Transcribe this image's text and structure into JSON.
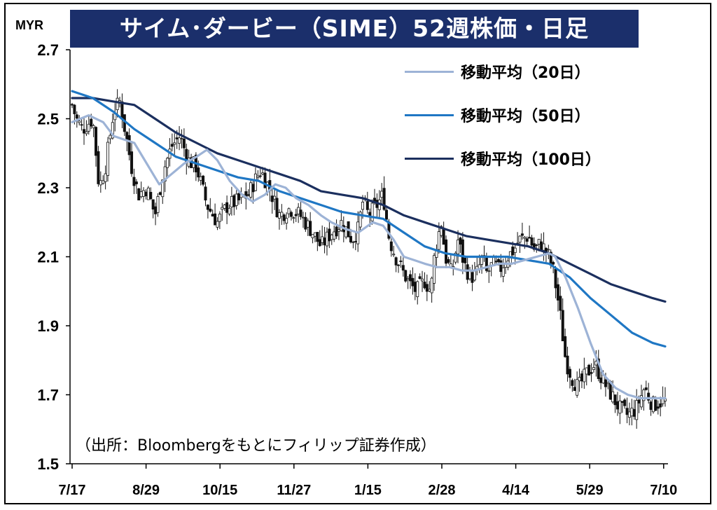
{
  "chart_data": {
    "type": "candlestick-line",
    "title": "サイム･ダービー（SIME）52週株価・日足",
    "unit": "MYR",
    "source": "（出所：Bloombergをもとにフィリップ証券作成）",
    "y_ticks": [
      "2.7",
      "2.5",
      "2.3",
      "2.1",
      "1.9",
      "1.7",
      "1.5"
    ],
    "ylim": [
      1.5,
      2.7
    ],
    "x_ticks": [
      "7/17",
      "8/29",
      "10/15",
      "11/27",
      "1/15",
      "2/28",
      "4/14",
      "5/29",
      "7/10"
    ],
    "legend": [
      {
        "name": "移動平均（20日）",
        "color": "#9db3d6"
      },
      {
        "name": "移動平均（50日）",
        "color": "#1f77c4"
      },
      {
        "name": "移動平均（100日）",
        "color": "#1b2f5e"
      }
    ],
    "close_path": [
      [
        0,
        2.54
      ],
      [
        0.2,
        2.5
      ],
      [
        0.5,
        2.47
      ],
      [
        1.0,
        2.5
      ],
      [
        1.3,
        2.3
      ],
      [
        1.6,
        2.36
      ],
      [
        2.0,
        2.52
      ],
      [
        2.3,
        2.55
      ],
      [
        2.6,
        2.45
      ],
      [
        2.9,
        2.35
      ],
      [
        3.2,
        2.28
      ],
      [
        3.6,
        2.3
      ],
      [
        4.0,
        2.22
      ],
      [
        4.4,
        2.35
      ],
      [
        4.8,
        2.42
      ],
      [
        5.2,
        2.45
      ],
      [
        5.6,
        2.38
      ],
      [
        6.0,
        2.36
      ],
      [
        6.5,
        2.25
      ],
      [
        7.0,
        2.2
      ],
      [
        7.5,
        2.25
      ],
      [
        8.0,
        2.26
      ],
      [
        8.5,
        2.28
      ],
      [
        8.8,
        2.32
      ],
      [
        9.1,
        2.35
      ],
      [
        9.5,
        2.3
      ],
      [
        10.0,
        2.22
      ],
      [
        10.5,
        2.24
      ],
      [
        11.0,
        2.22
      ],
      [
        11.5,
        2.18
      ],
      [
        12.0,
        2.13
      ],
      [
        12.5,
        2.17
      ],
      [
        13.0,
        2.2
      ],
      [
        13.5,
        2.15
      ],
      [
        13.8,
        2.18
      ],
      [
        14.0,
        2.26
      ],
      [
        14.3,
        2.22
      ],
      [
        14.7,
        2.25
      ],
      [
        15.0,
        2.28
      ],
      [
        15.3,
        2.15
      ],
      [
        15.6,
        2.1
      ],
      [
        16.0,
        2.05
      ],
      [
        16.3,
        2.02
      ],
      [
        16.6,
        2.0
      ],
      [
        17.0,
        2.03
      ],
      [
        17.3,
        2.0
      ],
      [
        17.5,
        2.12
      ],
      [
        17.8,
        2.2
      ],
      [
        18.0,
        2.1
      ],
      [
        18.3,
        2.05
      ],
      [
        18.6,
        2.15
      ],
      [
        18.9,
        2.08
      ],
      [
        19.2,
        2.04
      ],
      [
        19.5,
        2.05
      ],
      [
        19.8,
        2.1
      ],
      [
        20.0,
        2.05
      ],
      [
        20.3,
        2.08
      ],
      [
        20.6,
        2.06
      ],
      [
        21.0,
        2.1
      ],
      [
        21.3,
        2.12
      ],
      [
        21.6,
        2.15
      ],
      [
        22.0,
        2.16
      ],
      [
        22.3,
        2.12
      ],
      [
        22.6,
        2.14
      ],
      [
        23.0,
        2.1
      ],
      [
        23.2,
        2.06
      ],
      [
        23.5,
        1.95
      ],
      [
        23.8,
        1.8
      ],
      [
        24.1,
        1.75
      ],
      [
        24.4,
        1.72
      ],
      [
        24.8,
        1.76
      ],
      [
        25.2,
        1.79
      ],
      [
        25.6,
        1.74
      ],
      [
        26.0,
        1.7
      ],
      [
        26.4,
        1.66
      ],
      [
        26.8,
        1.64
      ],
      [
        27.2,
        1.66
      ],
      [
        27.6,
        1.72
      ],
      [
        28.0,
        1.67
      ],
      [
        28.4,
        1.68
      ],
      [
        28.6,
        1.68
      ]
    ],
    "ma20": [
      [
        0,
        2.49
      ],
      [
        0.8,
        2.51
      ],
      [
        1.5,
        2.49
      ],
      [
        2.0,
        2.45
      ],
      [
        2.5,
        2.44
      ],
      [
        3.0,
        2.43
      ],
      [
        3.6,
        2.37
      ],
      [
        4.2,
        2.31
      ],
      [
        4.8,
        2.34
      ],
      [
        5.4,
        2.37
      ],
      [
        6.0,
        2.39
      ],
      [
        6.5,
        2.41
      ],
      [
        7.0,
        2.38
      ],
      [
        7.6,
        2.32
      ],
      [
        8.2,
        2.28
      ],
      [
        8.7,
        2.26
      ],
      [
        9.3,
        2.28
      ],
      [
        9.8,
        2.31
      ],
      [
        10.3,
        2.3
      ],
      [
        10.8,
        2.27
      ],
      [
        11.4,
        2.25
      ],
      [
        12.0,
        2.22
      ],
      [
        12.5,
        2.2
      ],
      [
        13.2,
        2.18
      ],
      [
        13.8,
        2.17
      ],
      [
        14.5,
        2.2
      ],
      [
        15.0,
        2.19
      ],
      [
        15.5,
        2.15
      ],
      [
        16.0,
        2.1
      ],
      [
        16.5,
        2.09
      ],
      [
        17.0,
        2.08
      ],
      [
        17.6,
        2.07
      ],
      [
        18.2,
        2.07
      ],
      [
        18.8,
        2.06
      ],
      [
        19.4,
        2.06
      ],
      [
        20.0,
        2.07
      ],
      [
        20.6,
        2.08
      ],
      [
        21.2,
        2.08
      ],
      [
        21.8,
        2.09
      ],
      [
        22.4,
        2.1
      ],
      [
        23.0,
        2.11
      ],
      [
        23.3,
        2.1
      ],
      [
        23.8,
        2.04
      ],
      [
        24.4,
        1.95
      ],
      [
        25.0,
        1.85
      ],
      [
        25.6,
        1.76
      ],
      [
        26.2,
        1.72
      ],
      [
        26.8,
        1.7
      ],
      [
        27.4,
        1.69
      ],
      [
        28.0,
        1.69
      ],
      [
        28.6,
        1.69
      ]
    ],
    "ma50": [
      [
        0,
        2.58
      ],
      [
        1.0,
        2.56
      ],
      [
        2.0,
        2.52
      ],
      [
        3.0,
        2.47
      ],
      [
        4.0,
        2.43
      ],
      [
        5.0,
        2.39
      ],
      [
        6.0,
        2.37
      ],
      [
        7.0,
        2.35
      ],
      [
        8.0,
        2.33
      ],
      [
        9.0,
        2.32
      ],
      [
        10.0,
        2.29
      ],
      [
        11.0,
        2.27
      ],
      [
        12.0,
        2.25
      ],
      [
        13.0,
        2.23
      ],
      [
        14.0,
        2.22
      ],
      [
        15.0,
        2.21
      ],
      [
        16.0,
        2.17
      ],
      [
        17.0,
        2.13
      ],
      [
        18.0,
        2.11
      ],
      [
        19.0,
        2.1
      ],
      [
        20.0,
        2.1
      ],
      [
        21.0,
        2.1
      ],
      [
        22.0,
        2.09
      ],
      [
        23.0,
        2.08
      ],
      [
        24.0,
        2.04
      ],
      [
        25.0,
        1.98
      ],
      [
        26.0,
        1.93
      ],
      [
        27.0,
        1.88
      ],
      [
        28.0,
        1.85
      ],
      [
        28.6,
        1.84
      ]
    ],
    "ma100": [
      [
        0,
        2.56
      ],
      [
        1.0,
        2.56
      ],
      [
        2.0,
        2.55
      ],
      [
        3.0,
        2.54
      ],
      [
        4.0,
        2.5
      ],
      [
        5.0,
        2.46
      ],
      [
        6.0,
        2.43
      ],
      [
        7.0,
        2.4
      ],
      [
        8.0,
        2.38
      ],
      [
        9.0,
        2.36
      ],
      [
        10.0,
        2.34
      ],
      [
        11.0,
        2.32
      ],
      [
        12.0,
        2.29
      ],
      [
        13.0,
        2.28
      ],
      [
        14.0,
        2.27
      ],
      [
        15.0,
        2.25
      ],
      [
        16.0,
        2.22
      ],
      [
        17.0,
        2.2
      ],
      [
        18.0,
        2.18
      ],
      [
        19.0,
        2.16
      ],
      [
        20.0,
        2.15
      ],
      [
        21.0,
        2.14
      ],
      [
        22.0,
        2.13
      ],
      [
        23.0,
        2.11
      ],
      [
        24.0,
        2.08
      ],
      [
        25.0,
        2.05
      ],
      [
        26.0,
        2.02
      ],
      [
        27.0,
        2.0
      ],
      [
        28.0,
        1.98
      ],
      [
        28.6,
        1.97
      ]
    ]
  }
}
